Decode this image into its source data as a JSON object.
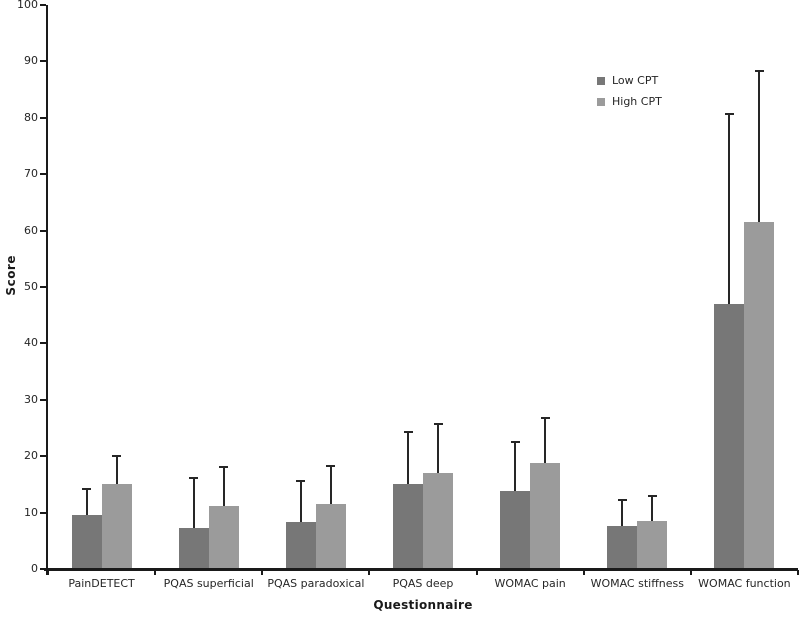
{
  "chart_data": {
    "type": "bar",
    "title": "",
    "xlabel": "Questionnaire",
    "ylabel": "Score",
    "ylim": [
      0,
      100
    ],
    "ytick_step": 10,
    "yticks": [
      0,
      10,
      20,
      30,
      40,
      50,
      60,
      70,
      80,
      90,
      100
    ],
    "grid": false,
    "legend_position": "top-right",
    "error_bars": "plus-direction-with-cap",
    "categories": [
      "PainDETECT",
      "PQAS superficial",
      "PQAS paradoxical",
      "PQAS deep",
      "WOMAC pain",
      "WOMAC stiffness",
      "WOMAC function"
    ],
    "series": [
      {
        "name": "Low CPT",
        "color": "#777777",
        "values": [
          9.6,
          7.2,
          8.3,
          15.0,
          13.8,
          7.7,
          46.9
        ],
        "errors": [
          4.6,
          8.9,
          7.3,
          9.3,
          8.7,
          4.5,
          33.7
        ]
      },
      {
        "name": "High CPT",
        "color": "#9b9b9b",
        "values": [
          15.0,
          11.2,
          11.6,
          17.1,
          18.8,
          8.5,
          61.5
        ],
        "errors": [
          5.0,
          6.9,
          6.6,
          8.6,
          8.0,
          4.4,
          26.8
        ]
      }
    ],
    "colors": {
      "axis": "#1a1a1a",
      "error_bar": "#262626",
      "text": "#262626",
      "background": "#ffffff"
    }
  }
}
